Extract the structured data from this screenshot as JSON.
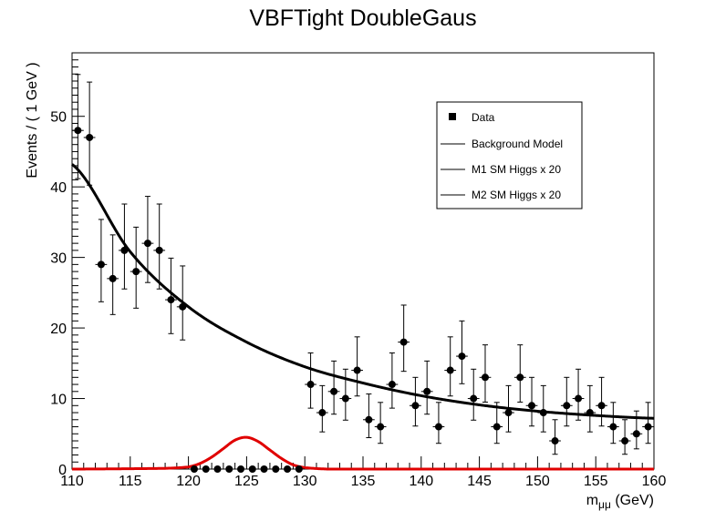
{
  "chart_data": {
    "type": "scatter",
    "title": "VBFTight DoubleGaus",
    "xlabel_main": "m",
    "xlabel_sub": "μμ",
    "xlabel_unit": " (GeV)",
    "ylabel": "Events / ( 1 GeV )",
    "xlim": [
      110,
      160
    ],
    "ylim": [
      0,
      59
    ],
    "x_ticks": [
      110,
      115,
      120,
      125,
      130,
      135,
      140,
      145,
      150,
      155,
      160
    ],
    "y_ticks": [
      0,
      10,
      20,
      30,
      40,
      50
    ],
    "grid": false,
    "legend_position": "top-right",
    "legend": [
      {
        "label": "Data",
        "marker": "square"
      },
      {
        "label": "Background Model",
        "marker": "line"
      },
      {
        "label": "M1 SM Higgs x 20",
        "marker": "line"
      },
      {
        "label": "M2 SM Higgs x 20",
        "marker": "line"
      }
    ],
    "colors": {
      "data": "#000000",
      "background": "#000000",
      "signal": "#e00000"
    },
    "data_points": [
      {
        "x": 110.5,
        "y": 48
      },
      {
        "x": 111.5,
        "y": 47
      },
      {
        "x": 112.5,
        "y": 29
      },
      {
        "x": 113.5,
        "y": 27
      },
      {
        "x": 114.5,
        "y": 31
      },
      {
        "x": 115.5,
        "y": 28
      },
      {
        "x": 116.5,
        "y": 32
      },
      {
        "x": 117.5,
        "y": 31
      },
      {
        "x": 118.5,
        "y": 24
      },
      {
        "x": 119.5,
        "y": 23
      },
      {
        "x": 120.5,
        "y": 0
      },
      {
        "x": 121.5,
        "y": 0
      },
      {
        "x": 122.5,
        "y": 0
      },
      {
        "x": 123.5,
        "y": 0
      },
      {
        "x": 124.5,
        "y": 0
      },
      {
        "x": 125.5,
        "y": 0
      },
      {
        "x": 126.5,
        "y": 0
      },
      {
        "x": 127.5,
        "y": 0
      },
      {
        "x": 128.5,
        "y": 0
      },
      {
        "x": 129.5,
        "y": 0
      },
      {
        "x": 130.5,
        "y": 12
      },
      {
        "x": 131.5,
        "y": 8
      },
      {
        "x": 132.5,
        "y": 11
      },
      {
        "x": 133.5,
        "y": 10
      },
      {
        "x": 134.5,
        "y": 14
      },
      {
        "x": 135.5,
        "y": 7
      },
      {
        "x": 136.5,
        "y": 6
      },
      {
        "x": 137.5,
        "y": 12
      },
      {
        "x": 138.5,
        "y": 18
      },
      {
        "x": 139.5,
        "y": 9
      },
      {
        "x": 140.5,
        "y": 11
      },
      {
        "x": 141.5,
        "y": 6
      },
      {
        "x": 142.5,
        "y": 14
      },
      {
        "x": 143.5,
        "y": 16
      },
      {
        "x": 144.5,
        "y": 10
      },
      {
        "x": 145.5,
        "y": 13
      },
      {
        "x": 146.5,
        "y": 6
      },
      {
        "x": 147.5,
        "y": 8
      },
      {
        "x": 148.5,
        "y": 13
      },
      {
        "x": 149.5,
        "y": 9
      },
      {
        "x": 150.5,
        "y": 8
      },
      {
        "x": 151.5,
        "y": 4
      },
      {
        "x": 152.5,
        "y": 9
      },
      {
        "x": 153.5,
        "y": 10
      },
      {
        "x": 154.5,
        "y": 8
      },
      {
        "x": 155.5,
        "y": 9
      },
      {
        "x": 156.5,
        "y": 6
      },
      {
        "x": 157.5,
        "y": 4
      },
      {
        "x": 158.5,
        "y": 5
      },
      {
        "x": 159.5,
        "y": 6
      }
    ],
    "background_model": {
      "x": [
        110,
        115,
        120,
        125,
        130,
        135,
        140,
        145,
        150,
        155,
        160
      ],
      "y": [
        43.2,
        30.8,
        23.0,
        18.0,
        14.5,
        12.2,
        10.4,
        9.1,
        8.2,
        7.6,
        7.2
      ]
    },
    "signal_model": {
      "x": [
        110,
        118,
        120,
        121,
        122,
        123,
        124,
        125,
        126,
        127,
        128,
        129,
        130,
        132,
        160
      ],
      "y": [
        0,
        0.1,
        0.3,
        0.8,
        1.7,
        2.9,
        4.1,
        4.5,
        3.9,
        2.7,
        1.5,
        0.6,
        0.2,
        0,
        0
      ]
    }
  }
}
